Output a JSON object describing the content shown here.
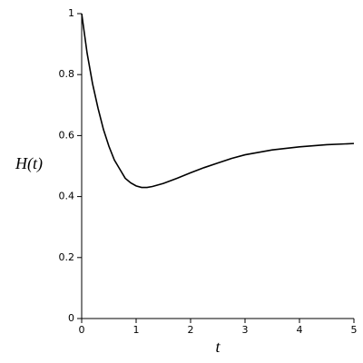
{
  "chart_data": {
    "type": "line",
    "xlabel": "t",
    "ylabel": "H(t)",
    "x": [
      0,
      0.1,
      0.2,
      0.3,
      0.4,
      0.5,
      0.6,
      0.7,
      0.8,
      0.9,
      1.0,
      1.1,
      1.2,
      1.3,
      1.5,
      1.75,
      2.0,
      2.25,
      2.5,
      2.75,
      3.0,
      3.5,
      4.0,
      4.5,
      5.0
    ],
    "series": [
      {
        "color": "#000000",
        "values": [
          1,
          0.87,
          0.77,
          0.69,
          0.62,
          0.565,
          0.52,
          0.49,
          0.46,
          0.445,
          0.435,
          0.43,
          0.43,
          0.433,
          0.443,
          0.46,
          0.478,
          0.495,
          0.51,
          0.525,
          0.537,
          0.553,
          0.563,
          0.57,
          0.574
        ]
      }
    ],
    "xlim": [
      0,
      5
    ],
    "xticks": [
      0,
      1,
      2,
      3,
      4,
      5
    ],
    "ylim": [
      0,
      1
    ],
    "yticks": [
      0,
      0.2,
      0.4,
      0.6,
      0.8,
      1
    ]
  }
}
